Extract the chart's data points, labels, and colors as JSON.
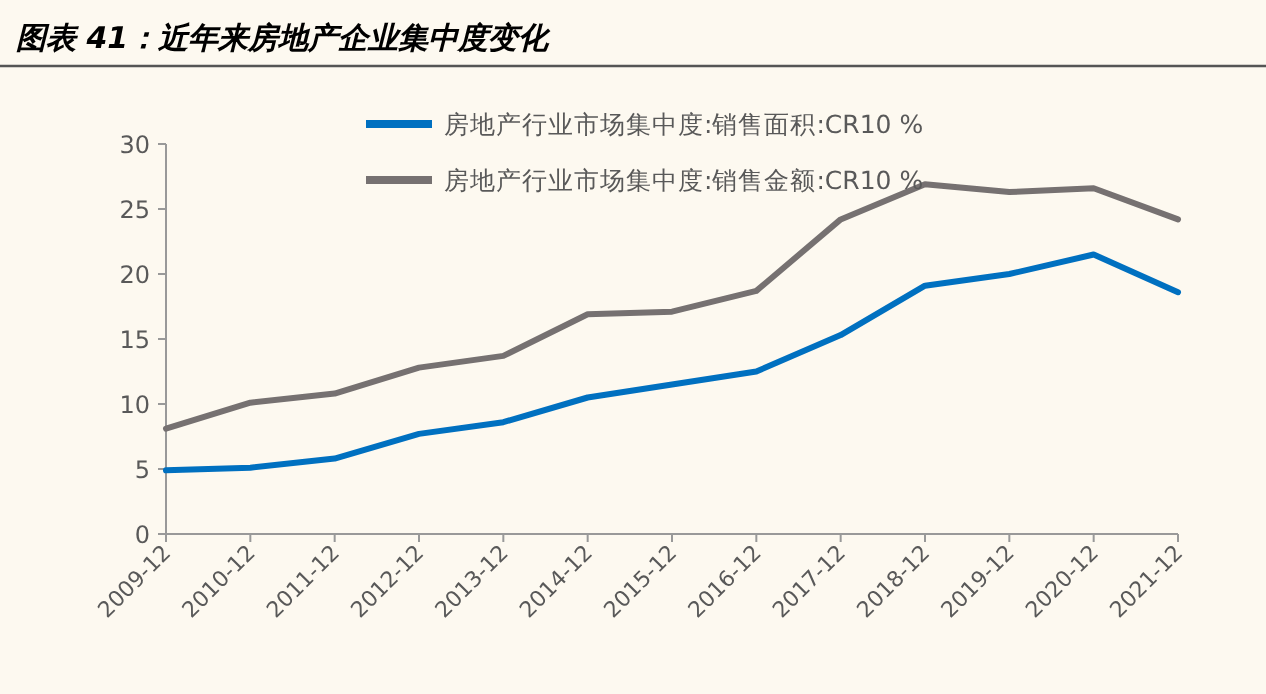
{
  "chart_data": {
    "type": "line",
    "title": "图表 41：近年来房地产企业集中度变化",
    "categories": [
      "2009-12",
      "2010-12",
      "2011-12",
      "2012-12",
      "2013-12",
      "2014-12",
      "2015-12",
      "2016-12",
      "2017-12",
      "2018-12",
      "2019-12",
      "2020-12",
      "2021-12"
    ],
    "series": [
      {
        "name": "房地产行业市场集中度:销售面积:CR10 %",
        "color": "#0070c0",
        "values": [
          4.9,
          5.1,
          5.8,
          7.7,
          8.6,
          10.5,
          11.5,
          12.5,
          15.3,
          19.1,
          20.0,
          21.5,
          18.6
        ]
      },
      {
        "name": "房地产行业市场集中度:销售金额:CR10 %",
        "color": "#767171",
        "values": [
          8.1,
          10.1,
          10.8,
          12.8,
          13.7,
          16.9,
          17.1,
          18.7,
          24.2,
          26.9,
          26.3,
          26.6,
          24.2
        ]
      }
    ],
    "ylim": [
      0,
      30
    ],
    "yticks": [
      0,
      5,
      10,
      15,
      20,
      25,
      30
    ],
    "grid": false,
    "legend": "top",
    "marker": "none",
    "line_style": "solid"
  }
}
